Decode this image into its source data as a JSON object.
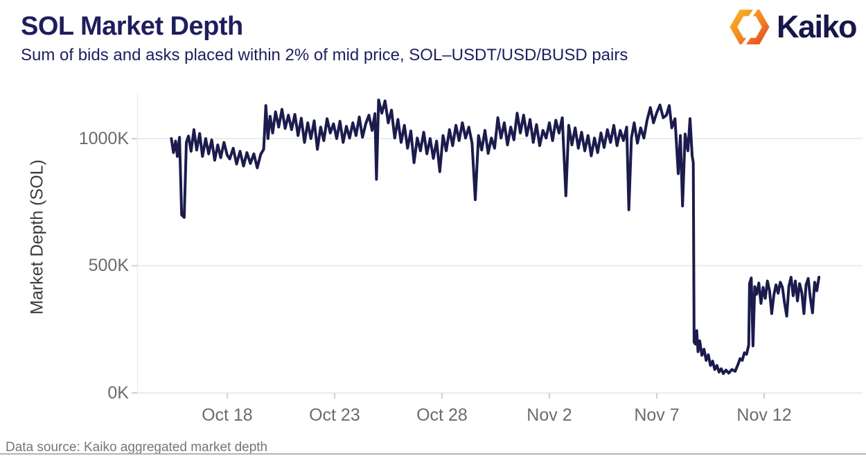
{
  "header": {
    "title": "SOL Market Depth",
    "subtitle": "Sum of bids and asks placed within 2% of mid price, SOL–USDT/USD/BUSD pairs"
  },
  "branding": {
    "logo_text": "Kaiko",
    "logo_icon": "kaiko-hexagon-mark",
    "logo_gradient_start": "#f8b024",
    "logo_gradient_mid": "#f28a20",
    "logo_gradient_end": "#e84e27",
    "wordmark_color": "#17174a"
  },
  "footer": {
    "source": "Data source: Kaiko aggregated market depth"
  },
  "chart_data": {
    "type": "line",
    "title": "SOL Market Depth",
    "subtitle": "Sum of bids and asks placed within 2% of mid price, SOL-USDT/USD/BUSD pairs",
    "xlabel": "",
    "ylabel": "Market Depth (SOL)",
    "y_unit": "thousands of SOL (K)",
    "x_unit": "days since Oct 15 (2022)",
    "grid": "horizontal",
    "legend": "none",
    "line_color": "#1b1b4d",
    "grid_color": "#ececec",
    "tick_color": "#cfcfcf",
    "tick_label_color": "#6b6b6b",
    "x_range": [
      -1.19,
      32.58
    ],
    "y_range": [
      0,
      1177
    ],
    "x_ticks": [
      {
        "t": 3,
        "label": "Oct 18"
      },
      {
        "t": 8,
        "label": "Oct 23"
      },
      {
        "t": 13,
        "label": "Oct 28"
      },
      {
        "t": 18,
        "label": "Nov 2"
      },
      {
        "t": 23,
        "label": "Nov 7"
      },
      {
        "t": 28,
        "label": "Nov 12"
      }
    ],
    "y_ticks": [
      {
        "v": 0,
        "label": "0K"
      },
      {
        "v": 500,
        "label": "500K"
      },
      {
        "v": 1000,
        "label": "1000K"
      }
    ],
    "series": [
      {
        "name": "SOL market depth within 2% of mid price (K SOL)",
        "color": "#1b1b4d",
        "points": [
          [
            0.4,
            1000
          ],
          [
            0.5,
            945
          ],
          [
            0.6,
            990
          ],
          [
            0.68,
            930
          ],
          [
            0.78,
            1005
          ],
          [
            0.88,
            700
          ],
          [
            1.0,
            690
          ],
          [
            1.1,
            985
          ],
          [
            1.2,
            1010
          ],
          [
            1.32,
            950
          ],
          [
            1.45,
            1035
          ],
          [
            1.58,
            955
          ],
          [
            1.72,
            1020
          ],
          [
            1.85,
            930
          ],
          [
            2.0,
            1000
          ],
          [
            2.14,
            940
          ],
          [
            2.28,
            995
          ],
          [
            2.42,
            915
          ],
          [
            2.56,
            975
          ],
          [
            2.7,
            925
          ],
          [
            2.85,
            985
          ],
          [
            3.0,
            935
          ],
          [
            3.12,
            920
          ],
          [
            3.28,
            962
          ],
          [
            3.44,
            900
          ],
          [
            3.6,
            950
          ],
          [
            3.76,
            892
          ],
          [
            3.92,
            945
          ],
          [
            4.08,
            902
          ],
          [
            4.24,
            940
          ],
          [
            4.4,
            885
          ],
          [
            4.56,
            938
          ],
          [
            4.7,
            958
          ],
          [
            4.8,
            1130
          ],
          [
            4.9,
            1000
          ],
          [
            5.0,
            1088
          ],
          [
            5.12,
            1022
          ],
          [
            5.25,
            1105
          ],
          [
            5.4,
            1045
          ],
          [
            5.55,
            1115
          ],
          [
            5.7,
            1040
          ],
          [
            5.85,
            1092
          ],
          [
            6.0,
            1035
          ],
          [
            6.15,
            1095
          ],
          [
            6.3,
            1012
          ],
          [
            6.45,
            1080
          ],
          [
            6.6,
            985
          ],
          [
            6.75,
            1062
          ],
          [
            6.9,
            1000
          ],
          [
            7.05,
            1070
          ],
          [
            7.2,
            958
          ],
          [
            7.35,
            1045
          ],
          [
            7.5,
            992
          ],
          [
            7.65,
            1078
          ],
          [
            7.8,
            1022
          ],
          [
            7.95,
            1058
          ],
          [
            8.1,
            1000
          ],
          [
            8.25,
            1068
          ],
          [
            8.4,
            985
          ],
          [
            8.55,
            1048
          ],
          [
            8.7,
            1002
          ],
          [
            8.85,
            1062
          ],
          [
            9.0,
            1012
          ],
          [
            9.15,
            1085
          ],
          [
            9.3,
            1005
          ],
          [
            9.45,
            1058
          ],
          [
            9.6,
            1092
          ],
          [
            9.75,
            1032
          ],
          [
            9.88,
            1098
          ],
          [
            9.95,
            840
          ],
          [
            10.05,
            1152
          ],
          [
            10.2,
            1100
          ],
          [
            10.35,
            1148
          ],
          [
            10.5,
            1062
          ],
          [
            10.65,
            1112
          ],
          [
            10.8,
            1002
          ],
          [
            10.95,
            1075
          ],
          [
            11.1,
            985
          ],
          [
            11.25,
            1052
          ],
          [
            11.4,
            962
          ],
          [
            11.55,
            1030
          ],
          [
            11.7,
            905
          ],
          [
            11.85,
            1002
          ],
          [
            12.0,
            952
          ],
          [
            12.15,
            1025
          ],
          [
            12.3,
            940
          ],
          [
            12.45,
            1000
          ],
          [
            12.6,
            922
          ],
          [
            12.75,
            990
          ],
          [
            12.9,
            870
          ],
          [
            13.05,
            1012
          ],
          [
            13.2,
            952
          ],
          [
            13.35,
            1035
          ],
          [
            13.5,
            972
          ],
          [
            13.65,
            1052
          ],
          [
            13.8,
            992
          ],
          [
            13.95,
            1062
          ],
          [
            14.1,
            1002
          ],
          [
            14.25,
            1045
          ],
          [
            14.4,
            982
          ],
          [
            14.55,
            760
          ],
          [
            14.7,
            1012
          ],
          [
            14.85,
            955
          ],
          [
            15.0,
            1032
          ],
          [
            15.15,
            942
          ],
          [
            15.3,
            1002
          ],
          [
            15.45,
            962
          ],
          [
            15.6,
            1082
          ],
          [
            15.75,
            1002
          ],
          [
            15.9,
            1062
          ],
          [
            16.05,
            975
          ],
          [
            16.2,
            1045
          ],
          [
            16.35,
            995
          ],
          [
            16.5,
            1100
          ],
          [
            16.65,
            1022
          ],
          [
            16.8,
            1092
          ],
          [
            16.95,
            1012
          ],
          [
            17.1,
            1075
          ],
          [
            17.25,
            985
          ],
          [
            17.4,
            1055
          ],
          [
            17.55,
            972
          ],
          [
            17.7,
            1032
          ],
          [
            17.85,
            1002
          ],
          [
            18.0,
            1062
          ],
          [
            18.15,
            992
          ],
          [
            18.3,
            1072
          ],
          [
            18.45,
            1022
          ],
          [
            18.6,
            1082
          ],
          [
            18.77,
            775
          ],
          [
            18.9,
            1052
          ],
          [
            19.05,
            975
          ],
          [
            19.2,
            1042
          ],
          [
            19.35,
            962
          ],
          [
            19.5,
            1025
          ],
          [
            19.65,
            952
          ],
          [
            19.8,
            1012
          ],
          [
            19.95,
            932
          ],
          [
            20.1,
            1002
          ],
          [
            20.25,
            945
          ],
          [
            20.4,
            1022
          ],
          [
            20.55,
            965
          ],
          [
            20.7,
            1035
          ],
          [
            20.85,
            985
          ],
          [
            21.0,
            1052
          ],
          [
            21.15,
            972
          ],
          [
            21.3,
            1032
          ],
          [
            21.45,
            992
          ],
          [
            21.6,
            1045
          ],
          [
            21.7,
            720
          ],
          [
            21.82,
            1002
          ],
          [
            21.95,
            1062
          ],
          [
            22.1,
            982
          ],
          [
            22.25,
            1042
          ],
          [
            22.4,
            1002
          ],
          [
            22.55,
            1072
          ],
          [
            22.7,
            1122
          ],
          [
            22.85,
            1062
          ],
          [
            23.0,
            1102
          ],
          [
            23.15,
            1132
          ],
          [
            23.3,
            1082
          ],
          [
            23.45,
            1092
          ],
          [
            23.58,
            1130
          ],
          [
            23.7,
            1042
          ],
          [
            23.85,
            1078
          ],
          [
            24.0,
            862
          ],
          [
            24.1,
            1012
          ],
          [
            24.2,
            735
          ],
          [
            24.32,
            1018
          ],
          [
            24.45,
            952
          ],
          [
            24.55,
            1078
          ],
          [
            24.65,
            932
          ],
          [
            24.7,
            905
          ],
          [
            24.74,
            200
          ],
          [
            24.8,
            192
          ],
          [
            24.86,
            245
          ],
          [
            24.92,
            162
          ],
          [
            25.0,
            205
          ],
          [
            25.1,
            148
          ],
          [
            25.2,
            172
          ],
          [
            25.3,
            128
          ],
          [
            25.4,
            150
          ],
          [
            25.5,
            108
          ],
          [
            25.6,
            125
          ],
          [
            25.7,
            92
          ],
          [
            25.8,
            108
          ],
          [
            25.9,
            82
          ],
          [
            26.0,
            95
          ],
          [
            26.1,
            76
          ],
          [
            26.22,
            90
          ],
          [
            26.35,
            78
          ],
          [
            26.5,
            92
          ],
          [
            26.65,
            85
          ],
          [
            26.78,
            112
          ],
          [
            26.88,
            135
          ],
          [
            26.98,
            128
          ],
          [
            27.08,
            158
          ],
          [
            27.18,
            152
          ],
          [
            27.28,
            188
          ],
          [
            27.32,
            430
          ],
          [
            27.4,
            452
          ],
          [
            27.48,
            185
          ],
          [
            27.56,
            418
          ],
          [
            27.65,
            388
          ],
          [
            27.75,
            432
          ],
          [
            27.85,
            352
          ],
          [
            27.95,
            415
          ],
          [
            28.05,
            372
          ],
          [
            28.15,
            440
          ],
          [
            28.25,
            402
          ],
          [
            28.35,
            312
          ],
          [
            28.45,
            385
          ],
          [
            28.55,
            425
          ],
          [
            28.65,
            392
          ],
          [
            28.75,
            435
          ],
          [
            28.85,
            415
          ],
          [
            28.95,
            352
          ],
          [
            29.05,
            302
          ],
          [
            29.15,
            420
          ],
          [
            29.25,
            455
          ],
          [
            29.35,
            382
          ],
          [
            29.45,
            440
          ],
          [
            29.55,
            362
          ],
          [
            29.65,
            430
          ],
          [
            29.75,
            395
          ],
          [
            29.85,
            312
          ],
          [
            29.95,
            425
          ],
          [
            30.05,
            450
          ],
          [
            30.15,
            372
          ],
          [
            30.25,
            315
          ],
          [
            30.35,
            435
          ],
          [
            30.45,
            402
          ],
          [
            30.55,
            455
          ]
        ]
      }
    ]
  }
}
